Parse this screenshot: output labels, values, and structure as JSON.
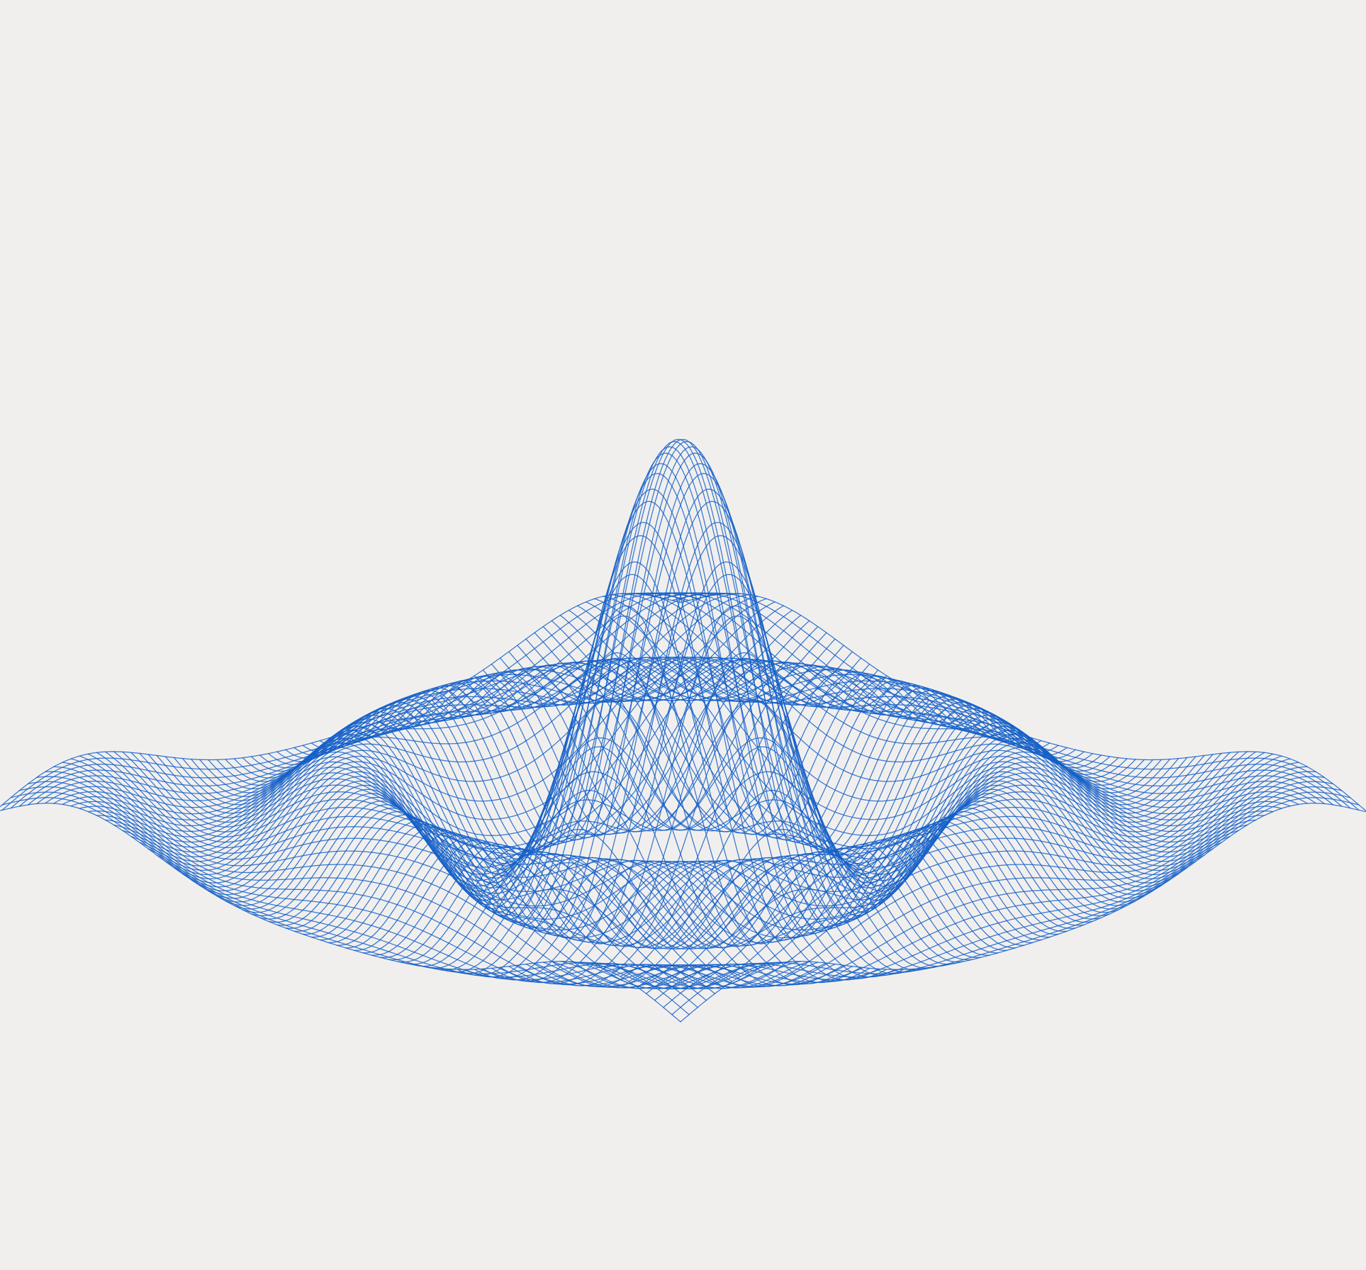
{
  "artwork": {
    "subject": "wireframe-surface-plot",
    "ink_color": "#1560c8",
    "paper_color": "#f1efee",
    "surface": "sombrero"
  }
}
